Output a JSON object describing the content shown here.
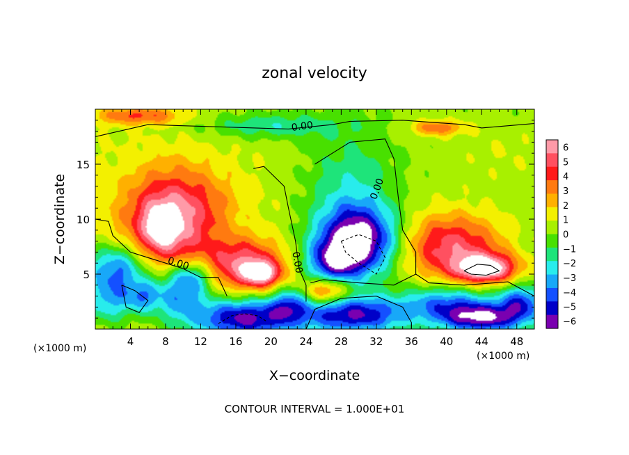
{
  "chart_data": {
    "type": "heatmap",
    "title": "zonal velocity",
    "xlabel": "X−coordinate",
    "ylabel": "Z−coordinate",
    "x_unit_left": "(×1000 m)",
    "x_unit_right": "(×1000 m)",
    "footer": "CONTOUR INTERVAL = 1.000E+01",
    "contour_label": "0.00",
    "xlim": [
      0,
      50
    ],
    "ylim": [
      0,
      20
    ],
    "x_ticks": [
      4,
      8,
      12,
      16,
      20,
      24,
      28,
      32,
      36,
      40,
      44,
      48
    ],
    "y_ticks": [
      5,
      10,
      15
    ],
    "x_tick_labels": [
      "4",
      "8",
      "12",
      "16",
      "20",
      "24",
      "28",
      "32",
      "36",
      "40",
      "44",
      "48"
    ],
    "y_tick_labels": [
      "5",
      "10",
      "15"
    ],
    "colorbar": {
      "min": -6,
      "max": 6,
      "tick_labels": [
        "6",
        "5",
        "4",
        "3",
        "2",
        "1",
        "0",
        "−1",
        "−2",
        "−3",
        "−4",
        "−5",
        "−6"
      ],
      "colors": [
        "#ff9aa8",
        "#ff5060",
        "#ff1a1a",
        "#ff7a10",
        "#ffb000",
        "#f3f000",
        "#a8f000",
        "#48e000",
        "#1ee47a",
        "#28ecec",
        "#18a8f8",
        "#1450ff",
        "#0000c8",
        "#7a00b0"
      ]
    },
    "blobs": [
      {
        "x": 0,
        "z": 10,
        "rx": 40,
        "rz": 16,
        "v": 0.9
      },
      {
        "x": 8,
        "z": 9.8,
        "rx": 5,
        "rz": 4.5,
        "v": 4.2
      },
      {
        "x": 7.5,
        "z": 9.2,
        "rx": 2.2,
        "rz": 2.2,
        "v": 2.5
      },
      {
        "x": 12,
        "z": 11,
        "rx": 5,
        "rz": 4,
        "v": 1.5
      },
      {
        "x": 17,
        "z": 5.8,
        "rx": 4.5,
        "rz": 2.3,
        "v": 4.5
      },
      {
        "x": 19,
        "z": 5,
        "rx": 2,
        "rz": 1.1,
        "v": 4
      },
      {
        "x": 2.5,
        "z": 5.5,
        "rx": 3.5,
        "rz": 2.2,
        "v": -4.5
      },
      {
        "x": 1.5,
        "z": 2.5,
        "rx": 3,
        "rz": 2,
        "v": -3
      },
      {
        "x": 5.5,
        "z": 3,
        "rx": 2,
        "rz": 1.5,
        "v": -3
      },
      {
        "x": 9.5,
        "z": 3,
        "rx": 3,
        "rz": 2.2,
        "v": -3.5
      },
      {
        "x": 11,
        "z": 4.8,
        "rx": 2.5,
        "rz": 1.5,
        "v": -3.5
      },
      {
        "x": 17,
        "z": 1,
        "rx": 6,
        "rz": 1.8,
        "v": -6
      },
      {
        "x": 22,
        "z": 2.3,
        "rx": 2,
        "rz": 1.5,
        "v": -3
      },
      {
        "x": 29,
        "z": 12,
        "rx": 5,
        "rz": 6,
        "v": -2.2
      },
      {
        "x": 30,
        "z": 8,
        "rx": 4.5,
        "rz": 3,
        "v": -6.5
      },
      {
        "x": 27,
        "z": 6,
        "rx": 3,
        "rz": 2,
        "v": -4
      },
      {
        "x": 26.5,
        "z": 3.5,
        "rx": 2.5,
        "rz": 1.2,
        "v": 4
      },
      {
        "x": 29.5,
        "z": 1.3,
        "rx": 6,
        "rz": 1.7,
        "v": -5.5
      },
      {
        "x": 40.5,
        "z": 7.5,
        "rx": 6,
        "rz": 3,
        "v": 4.5
      },
      {
        "x": 44.5,
        "z": 5.5,
        "rx": 3.5,
        "rz": 1.3,
        "v": 6
      },
      {
        "x": 40,
        "z": 2.5,
        "rx": 5,
        "rz": 1.5,
        "v": -3.5
      },
      {
        "x": 44,
        "z": 1,
        "rx": 5,
        "rz": 1.3,
        "v": -6
      },
      {
        "x": 48.5,
        "z": 2.5,
        "rx": 2.5,
        "rz": 1.5,
        "v": -4
      },
      {
        "x": 47,
        "z": 16,
        "rx": 6,
        "rz": 3,
        "v": 0.6
      },
      {
        "x": 20,
        "z": 18.5,
        "rx": 8,
        "rz": 1.2,
        "v": -2
      },
      {
        "x": 39,
        "z": 18.3,
        "rx": 3,
        "rz": 0.7,
        "v": 3
      },
      {
        "x": 5,
        "z": 19.4,
        "rx": 5,
        "rz": 0.8,
        "v": 3
      }
    ],
    "contours": [
      {
        "type": "zero",
        "points": [
          [
            0,
            17.5
          ],
          [
            6,
            18.6
          ],
          [
            14,
            18.4
          ],
          [
            22,
            18.2
          ],
          [
            27,
            18.6
          ],
          [
            29,
            18.9
          ],
          [
            35,
            19
          ],
          [
            42,
            18.6
          ],
          [
            44,
            18.3
          ],
          [
            50,
            18.7
          ]
        ]
      },
      {
        "type": "zero",
        "points": [
          [
            0,
            10
          ],
          [
            1.5,
            9.8
          ],
          [
            2,
            8.5
          ],
          [
            4,
            7
          ],
          [
            6,
            6.5
          ],
          [
            8,
            6
          ],
          [
            10,
            5.5
          ],
          [
            12,
            4.7
          ],
          [
            14,
            4.7
          ],
          [
            15,
            3
          ]
        ]
      },
      {
        "type": "zero",
        "points": [
          [
            18,
            14.6
          ],
          [
            19.2,
            14.8
          ],
          [
            21.5,
            13
          ],
          [
            22,
            11
          ],
          [
            22.8,
            8
          ],
          [
            23.2,
            5.5
          ],
          [
            24,
            4
          ],
          [
            24,
            2.5
          ]
        ]
      },
      {
        "type": "zero",
        "points": [
          [
            25,
            15
          ],
          [
            27,
            16
          ],
          [
            29,
            17
          ],
          [
            33,
            17.3
          ],
          [
            34,
            15.5
          ],
          [
            34.5,
            12
          ],
          [
            35,
            9
          ],
          [
            36.5,
            7
          ],
          [
            36.5,
            5
          ],
          [
            34,
            4
          ],
          [
            30,
            4.2
          ],
          [
            26,
            4.5
          ],
          [
            24.5,
            4.2
          ]
        ]
      },
      {
        "type": "zero",
        "points": [
          [
            36.5,
            5
          ],
          [
            38,
            4.2
          ],
          [
            42,
            4
          ],
          [
            47,
            4.3
          ],
          [
            50,
            3
          ]
        ]
      },
      {
        "type": "zero",
        "points": [
          [
            36,
            0
          ],
          [
            36,
            0.6
          ],
          [
            35,
            2
          ],
          [
            32,
            3
          ],
          [
            28,
            2.8
          ],
          [
            25,
            1.8
          ],
          [
            24,
            0
          ]
        ]
      },
      {
        "type": "zero",
        "points": [
          [
            3,
            4
          ],
          [
            4.5,
            3.5
          ],
          [
            6,
            2.6
          ],
          [
            5,
            1.5
          ],
          [
            3.5,
            2
          ],
          [
            3,
            4
          ]
        ]
      },
      {
        "type": "dashed",
        "points": [
          [
            28,
            8
          ],
          [
            30,
            8.6
          ],
          [
            32,
            8
          ],
          [
            33,
            6.5
          ],
          [
            32,
            5
          ],
          [
            30,
            6
          ],
          [
            28.5,
            7
          ],
          [
            28,
            8
          ]
        ]
      },
      {
        "type": "dashed",
        "points": [
          [
            14,
            0.5
          ],
          [
            15.5,
            1.2
          ],
          [
            17,
            1.4
          ],
          [
            18.5,
            1.2
          ],
          [
            19.5,
            0.7
          ]
        ]
      },
      {
        "type": "solid",
        "points": [
          [
            42,
            5.3
          ],
          [
            43.5,
            5.9
          ],
          [
            45,
            5.8
          ],
          [
            46,
            5.3
          ],
          [
            44.5,
            4.9
          ],
          [
            42.8,
            5
          ],
          [
            42,
            5.3
          ]
        ]
      }
    ]
  }
}
